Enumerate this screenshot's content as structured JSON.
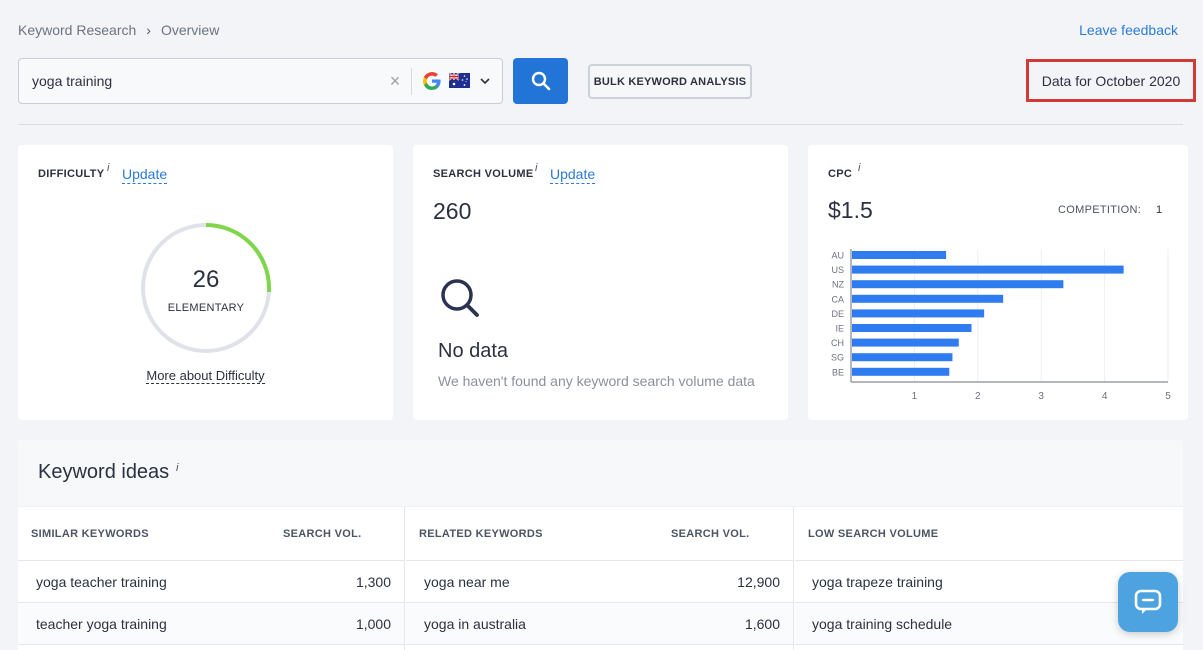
{
  "breadcrumb": {
    "root": "Keyword Research",
    "current": "Overview"
  },
  "header": {
    "feedback": "Leave feedback",
    "data_for": "Data for October 2020"
  },
  "search": {
    "value": "yoga training",
    "bulk_label": "BULK KEYWORD ANALYSIS"
  },
  "difficulty": {
    "label": "DIFFICULTY",
    "update": "Update",
    "value": "26",
    "level": "ELEMENTARY",
    "more": "More about Difficulty",
    "progress": 0.26
  },
  "search_volume": {
    "label": "SEARCH VOLUME",
    "update": "Update",
    "value": "260",
    "nodata_title": "No data",
    "nodata_text": "We haven't found any keyword search volume data"
  },
  "cpc": {
    "label": "CPC",
    "value": "$1.5",
    "competition_label": "COMPETITION:",
    "competition_value": "1"
  },
  "chart_data": {
    "type": "bar",
    "orientation": "horizontal",
    "categories": [
      "AU",
      "US",
      "NZ",
      "CA",
      "DE",
      "IE",
      "CH",
      "SG",
      "BE"
    ],
    "values": [
      1.5,
      4.3,
      3.35,
      2.4,
      2.1,
      1.9,
      1.7,
      1.6,
      1.55
    ],
    "xticks": [
      "1",
      "2",
      "3",
      "4",
      "5"
    ],
    "xlim": [
      0,
      5
    ],
    "color": "#2f7cf0",
    "grid": true
  },
  "ideas": {
    "title": "Keyword ideas",
    "similar": {
      "header": "SIMILAR KEYWORDS",
      "vol_header": "SEARCH VOL.",
      "rows": [
        {
          "kw": "yoga teacher training",
          "vol": "1,300"
        },
        {
          "kw": "teacher yoga training",
          "vol": "1,000"
        }
      ]
    },
    "related": {
      "header": "RELATED KEYWORDS",
      "vol_header": "SEARCH VOL.",
      "rows": [
        {
          "kw": "yoga near me",
          "vol": "12,900"
        },
        {
          "kw": "yoga in australia",
          "vol": "1,600"
        }
      ]
    },
    "low": {
      "header": "LOW SEARCH VOLUME",
      "rows": [
        {
          "kw": "yoga trapeze training"
        },
        {
          "kw": "yoga training schedule"
        }
      ]
    }
  }
}
